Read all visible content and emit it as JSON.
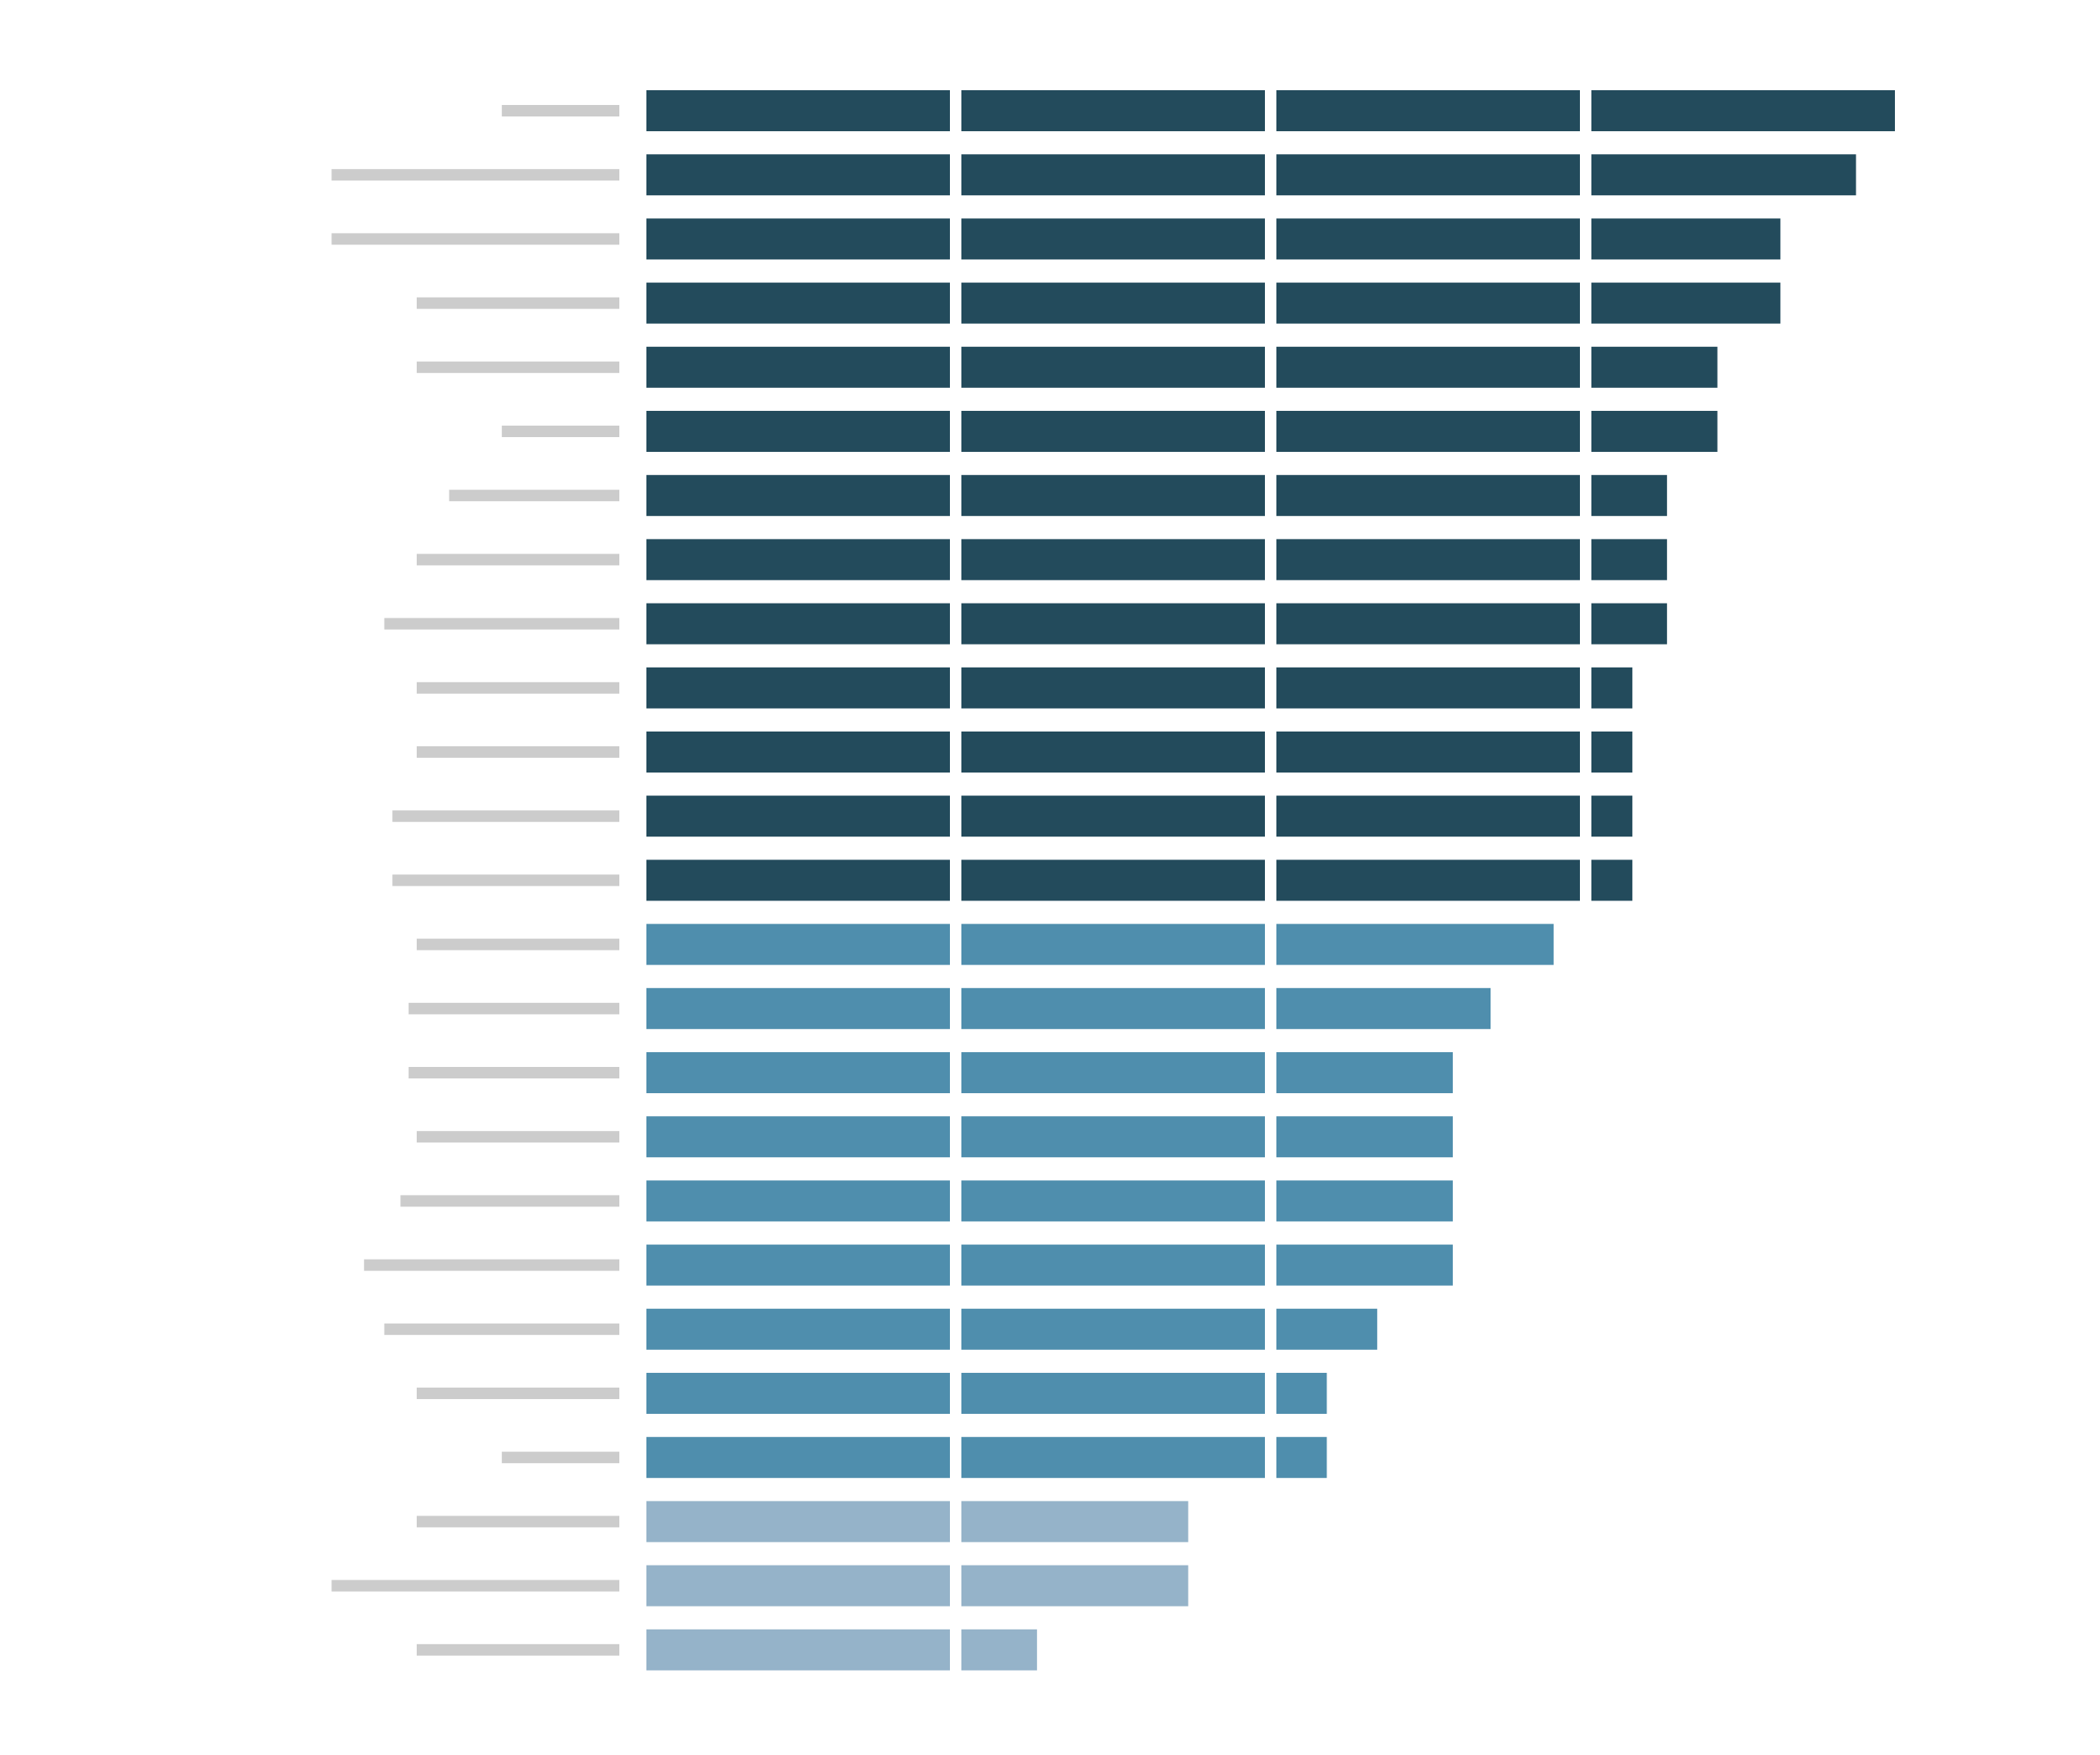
{
  "chart_data": {
    "type": "bar",
    "orientation": "horizontal",
    "stacked_units": true,
    "unit_size": 1,
    "categories": [
      "",
      "",
      "",
      "",
      "",
      "",
      "",
      "",
      "",
      "",
      "",
      "",
      "",
      "",
      "",
      "",
      "",
      "",
      "",
      "",
      "",
      "",
      "",
      "",
      ""
    ],
    "values": [
      4.0,
      3.84,
      3.6,
      3.6,
      3.4,
      3.4,
      3.24,
      3.24,
      3.24,
      3.13,
      3.13,
      3.13,
      3.13,
      2.88,
      2.68,
      2.56,
      2.56,
      2.56,
      2.56,
      2.32,
      2.16,
      2.16,
      1.72,
      1.72,
      1.24
    ],
    "value_group": [
      "high",
      "high",
      "high",
      "high",
      "high",
      "high",
      "high",
      "high",
      "high",
      "high",
      "high",
      "high",
      "high",
      "mid",
      "mid",
      "mid",
      "mid",
      "mid",
      "mid",
      "mid",
      "mid",
      "mid",
      "low",
      "low",
      "low"
    ],
    "label_placeholder_lengths": [
      0.29,
      0.71,
      0.71,
      0.5,
      0.5,
      0.29,
      0.42,
      0.5,
      0.58,
      0.5,
      0.5,
      0.56,
      0.56,
      0.5,
      0.52,
      0.52,
      0.5,
      0.54,
      0.63,
      0.58,
      0.5,
      0.29,
      0.5,
      0.71,
      0.5
    ],
    "colors": {
      "high": "#234B5C",
      "mid": "#4F8EAD",
      "low": "#95B3C9",
      "label_placeholder": "#CCCCCC"
    },
    "title": "",
    "xlabel": "",
    "ylabel": "",
    "grid": false,
    "legend": "none"
  }
}
